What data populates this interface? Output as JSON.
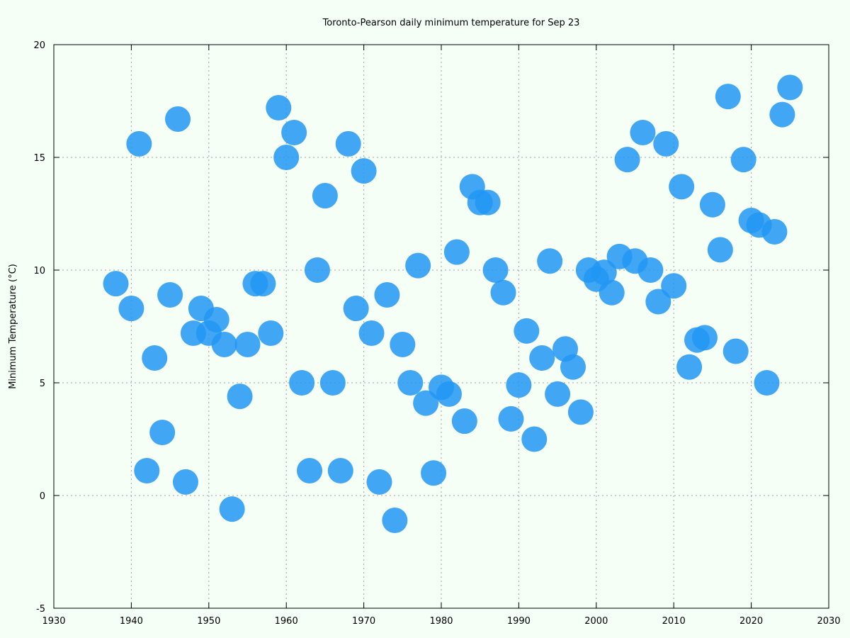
{
  "colors": {
    "background": "#f5fff5",
    "point": "#2196f3",
    "grid": "#a0a0a0",
    "axis": "#000000"
  },
  "chart_data": {
    "type": "scatter",
    "title": "Toronto-Pearson daily minimum temperature for Sep 23",
    "xlabel": "",
    "ylabel": "Minimum Temperature (°C)",
    "xlim": [
      1930,
      2030
    ],
    "ylim": [
      -5,
      20
    ],
    "xticks": [
      1930,
      1940,
      1950,
      1960,
      1970,
      1980,
      1990,
      2000,
      2010,
      2020,
      2030
    ],
    "yticks": [
      -5,
      0,
      5,
      10,
      15,
      20
    ],
    "grid": true,
    "series": [
      {
        "x": [
          1938,
          1940,
          1941,
          1942,
          1943,
          1944,
          1945,
          1946,
          1947,
          1948,
          1949,
          1950,
          1951,
          1952,
          1953,
          1954,
          1955,
          1956,
          1957,
          1958,
          1959,
          1960,
          1961,
          1962,
          1963,
          1964,
          1965,
          1966,
          1967,
          1968,
          1969,
          1970,
          1971,
          1972,
          1973,
          1974,
          1975,
          1976,
          1977,
          1978,
          1979,
          1980,
          1981,
          1982,
          1983,
          1984,
          1985,
          1986,
          1987,
          1988,
          1989,
          1990,
          1991,
          1992,
          1993,
          1994,
          1995,
          1996,
          1997,
          1998,
          1999,
          2000,
          2001,
          2002,
          2003,
          2004,
          2005,
          2006,
          2007,
          2008,
          2009,
          2010,
          2011,
          2012,
          2013,
          2014,
          2015,
          2016,
          2017,
          2018,
          2019,
          2020,
          2021,
          2022,
          2023,
          2024,
          2025
        ],
        "y": [
          9.4,
          8.3,
          15.6,
          1.1,
          6.1,
          2.8,
          8.9,
          16.7,
          0.6,
          7.2,
          8.3,
          7.2,
          7.8,
          6.7,
          -0.6,
          4.4,
          6.7,
          9.4,
          9.4,
          7.2,
          17.2,
          15.0,
          16.1,
          5.0,
          1.1,
          10.0,
          13.3,
          5.0,
          1.1,
          15.6,
          8.3,
          14.4,
          7.2,
          0.6,
          8.9,
          -1.1,
          6.7,
          5.0,
          10.2,
          4.1,
          1.0,
          4.8,
          4.5,
          10.8,
          3.3,
          13.7,
          13.0,
          13.0,
          10.0,
          9.0,
          3.4,
          4.9,
          7.3,
          2.5,
          6.1,
          10.4,
          4.5,
          6.5,
          5.7,
          3.7,
          10.0,
          9.6,
          9.9,
          9.0,
          10.6,
          14.9,
          10.4,
          16.1,
          10.0,
          8.6,
          15.6,
          9.3,
          13.7,
          5.7,
          6.9,
          7.0,
          12.9,
          10.9,
          17.7,
          6.4,
          14.9,
          12.2,
          12.0,
          5.0,
          11.7,
          16.9,
          18.1
        ]
      }
    ]
  }
}
